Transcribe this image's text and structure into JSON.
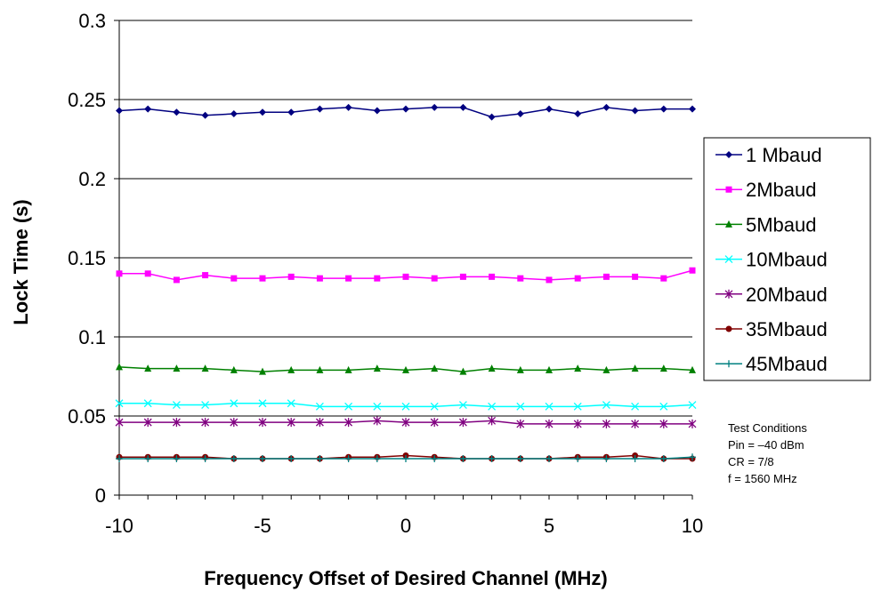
{
  "chart_data": {
    "type": "line",
    "xlabel": "Frequency Offset of Desired Channel (MHz)",
    "ylabel": "Lock Time (s)",
    "xlim": [
      -10,
      10
    ],
    "ylim": [
      0,
      0.3
    ],
    "xticks": [
      "-10",
      "-5",
      "0",
      "5",
      "10"
    ],
    "yticks": [
      "0",
      "0.05",
      "0.1",
      "0.15",
      "0.2",
      "0.25",
      "0.3"
    ],
    "grid": "horizontal",
    "legend_position": "right",
    "x": [
      -10,
      -9,
      -8,
      -7,
      -6,
      -5,
      -4,
      -3,
      -2,
      -1,
      0,
      1,
      2,
      3,
      4,
      5,
      6,
      7,
      8,
      9,
      10
    ],
    "series": [
      {
        "name": "1 Mbaud",
        "color": "#000080",
        "marker": "diamond",
        "values": [
          0.243,
          0.244,
          0.242,
          0.24,
          0.241,
          0.242,
          0.242,
          0.244,
          0.245,
          0.243,
          0.244,
          0.245,
          0.245,
          0.239,
          0.241,
          0.244,
          0.241,
          0.245,
          0.243,
          0.244,
          0.244
        ]
      },
      {
        "name": "2Mbaud",
        "color": "#FF00FF",
        "marker": "square",
        "values": [
          0.14,
          0.14,
          0.136,
          0.139,
          0.137,
          0.137,
          0.138,
          0.137,
          0.137,
          0.137,
          0.138,
          0.137,
          0.138,
          0.138,
          0.137,
          0.136,
          0.137,
          0.138,
          0.138,
          0.137,
          0.142
        ]
      },
      {
        "name": "5Mbaud",
        "color": "#008000",
        "marker": "triangle",
        "values": [
          0.081,
          0.08,
          0.08,
          0.08,
          0.079,
          0.078,
          0.079,
          0.079,
          0.079,
          0.08,
          0.079,
          0.08,
          0.078,
          0.08,
          0.079,
          0.079,
          0.08,
          0.079,
          0.08,
          0.08,
          0.079
        ]
      },
      {
        "name": "10Mbaud",
        "color": "#00FFFF",
        "marker": "x",
        "values": [
          0.058,
          0.058,
          0.057,
          0.057,
          0.058,
          0.058,
          0.058,
          0.056,
          0.056,
          0.056,
          0.056,
          0.056,
          0.057,
          0.056,
          0.056,
          0.056,
          0.056,
          0.057,
          0.056,
          0.056,
          0.057
        ]
      },
      {
        "name": "20Mbaud",
        "color": "#800080",
        "marker": "star",
        "values": [
          0.046,
          0.046,
          0.046,
          0.046,
          0.046,
          0.046,
          0.046,
          0.046,
          0.046,
          0.047,
          0.046,
          0.046,
          0.046,
          0.047,
          0.045,
          0.045,
          0.045,
          0.045,
          0.045,
          0.045,
          0.045
        ]
      },
      {
        "name": "35Mbaud",
        "color": "#800000",
        "marker": "circle",
        "values": [
          0.024,
          0.024,
          0.024,
          0.024,
          0.023,
          0.023,
          0.023,
          0.023,
          0.024,
          0.024,
          0.025,
          0.024,
          0.023,
          0.023,
          0.023,
          0.023,
          0.024,
          0.024,
          0.025,
          0.023,
          0.023
        ]
      },
      {
        "name": "45Mbaud",
        "color": "#008080",
        "marker": "plus",
        "values": [
          0.023,
          0.023,
          0.023,
          0.023,
          0.023,
          0.023,
          0.023,
          0.023,
          0.023,
          0.023,
          0.023,
          0.023,
          0.023,
          0.023,
          0.023,
          0.023,
          0.023,
          0.023,
          0.023,
          0.023,
          0.024
        ]
      }
    ]
  },
  "notes": {
    "title": "Test Conditions",
    "lines": [
      "Pin = –40 dBm",
      "CR = 7/8",
      "f = 1560 MHz"
    ]
  }
}
